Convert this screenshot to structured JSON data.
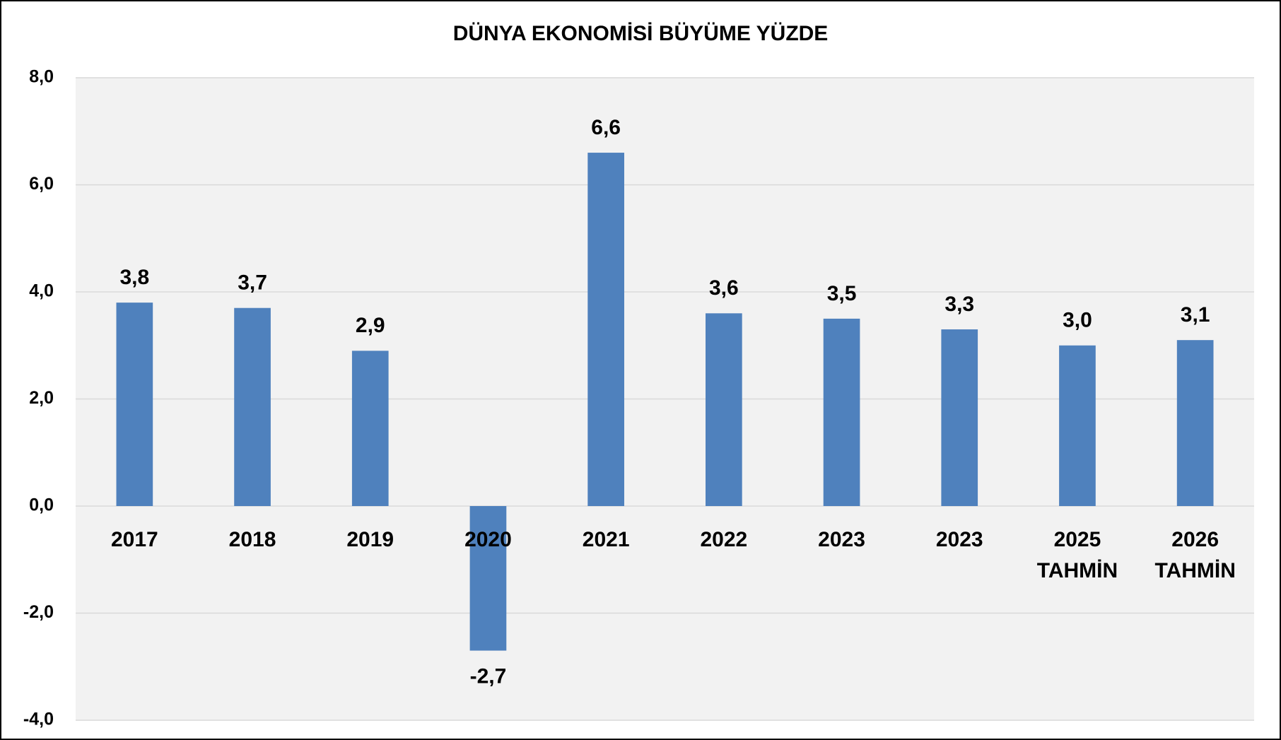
{
  "chart_data": {
    "type": "bar",
    "title": "DÜNYA EKONOMİSİ BÜYÜME YÜZDE",
    "categories": [
      "2017",
      "2018",
      "2019",
      "2020",
      "2021",
      "2022",
      "2023",
      "2023",
      "2025 TAHMİN",
      "2026 TAHMİN"
    ],
    "values": [
      3.8,
      3.7,
      2.9,
      -2.7,
      6.6,
      3.6,
      3.5,
      3.3,
      3.0,
      3.1
    ],
    "value_labels": [
      "3,8",
      "3,7",
      "2,9",
      "-2,7",
      "6,6",
      "3,6",
      "3,5",
      "3,3",
      "3,0",
      "3,1"
    ],
    "color": "#4f81bd",
    "ylim": [
      -4,
      8
    ],
    "yticks": [
      {
        "value": -4,
        "label": "-4,0"
      },
      {
        "value": -2,
        "label": "-2,0"
      },
      {
        "value": 0,
        "label": "0,0"
      },
      {
        "value": 2,
        "label": "2,0"
      },
      {
        "value": 4,
        "label": "4,0"
      },
      {
        "value": 6,
        "label": "6,0"
      },
      {
        "value": 8,
        "label": "8,0"
      }
    ],
    "grid": true
  }
}
